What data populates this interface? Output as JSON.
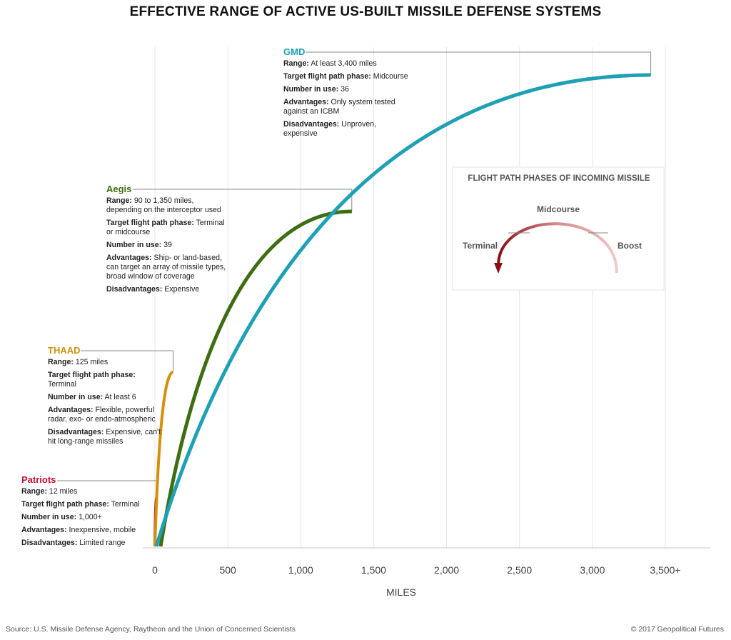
{
  "title": "EFFECTIVE RANGE OF ACTIVE US-BUILT MISSILE DEFENSE SYSTEMS",
  "source": "Source: U.S. Missile Defense Agency, Raytheon and the Union of Concerned Scientists",
  "copyright": "© 2017 Geopolitical Futures",
  "colors": {
    "patriots": "#c8102e",
    "thaad": "#d4900a",
    "aegis": "#3d6e12",
    "gmd": "#1ea0b5"
  },
  "chart_data": {
    "type": "line",
    "xlabel": "MILES",
    "ylabel": "",
    "xlim": [
      0,
      3500
    ],
    "x_ticks": [
      "0",
      "500",
      "1,000",
      "1,500",
      "2,000",
      "2,500",
      "3,000",
      "3,500+"
    ],
    "grid": true,
    "series": [
      {
        "name": "Patriots",
        "range_miles": 12
      },
      {
        "name": "THAAD",
        "range_miles": 125
      },
      {
        "name": "Aegis",
        "range_miles": 1350
      },
      {
        "name": "GMD",
        "range_miles": 3400
      }
    ]
  },
  "systems": {
    "gmd": {
      "name": "GMD",
      "range_label": "Range:",
      "range": "At least 3,400 miles",
      "phase_label": "Target flight path phase:",
      "phase": "Midcourse",
      "number_label": "Number in use:",
      "number": "36",
      "adv_label": "Advantages:",
      "adv": "Only system tested against an ICBM",
      "dis_label": "Disadvantages:",
      "dis": "Unproven, expensive"
    },
    "aegis": {
      "name": "Aegis",
      "range_label": "Range:",
      "range": "90 to 1,350 miles, depending on the interceptor used",
      "phase_label": "Target flight path phase:",
      "phase": "Terminal or midcourse",
      "number_label": "Number in use:",
      "number": "39",
      "adv_label": "Advantages:",
      "adv": "Ship- or land-based, can target an array of missile types, broad window of coverage",
      "dis_label": "Disadvantages:",
      "dis": "Expensive"
    },
    "thaad": {
      "name": "THAAD",
      "range_label": "Range:",
      "range": "125 miles",
      "phase_label": "Target flight path phase:",
      "phase": "Terminal",
      "number_label": "Number in use:",
      "number": "At least 6",
      "adv_label": "Advantages:",
      "adv": "Flexible, powerful radar, exo- or endo-atmospheric",
      "dis_label": "Disadvantages:",
      "dis": "Expensive, can't hit long-range missiles"
    },
    "patriots": {
      "name": "Patriots",
      "range_label": "Range:",
      "range": "12 miles",
      "phase_label": "Target flight path phase:",
      "phase": "Terminal",
      "number_label": "Number in use:",
      "number": "1,000+",
      "adv_label": "Advantages:",
      "adv": "Inexpensive, mobile",
      "dis_label": "Disadvantages:",
      "dis": "Limited range"
    }
  },
  "inset": {
    "title": "FLIGHT PATH PHASES OF INCOMING MISSILE",
    "midcourse": "Midcourse",
    "terminal": "Terminal",
    "boost": "Boost"
  }
}
